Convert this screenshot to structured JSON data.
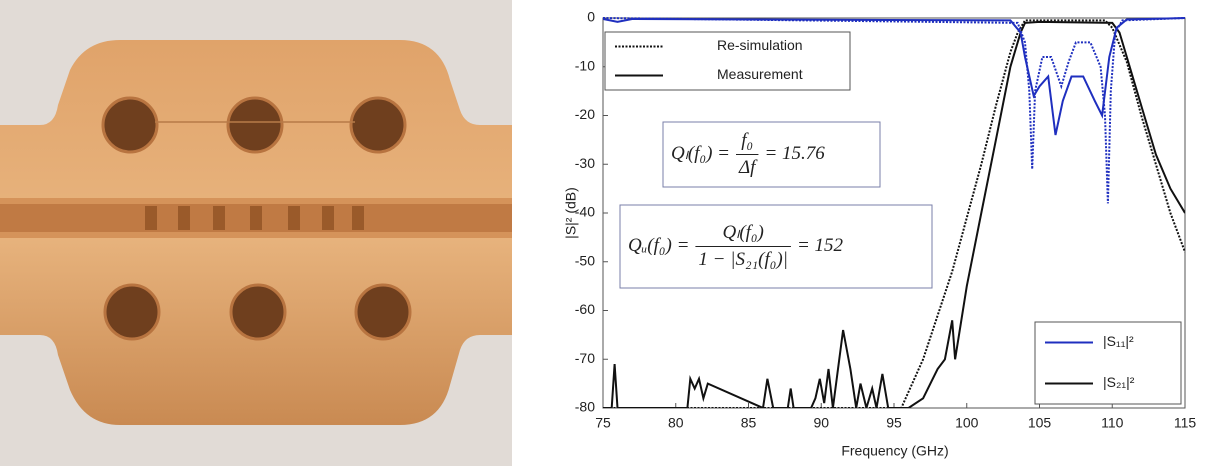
{
  "chart_data": {
    "type": "line",
    "xlabel": "Frequency (GHz)",
    "ylabel": "|S|² (dB)",
    "xlim": [
      75,
      115
    ],
    "ylim": [
      -80,
      0
    ],
    "xticks": [
      75,
      80,
      85,
      90,
      95,
      100,
      105,
      110,
      115
    ],
    "yticks": [
      0,
      -10,
      -20,
      -30,
      -40,
      -50,
      -60,
      -70,
      -80
    ],
    "series": [
      {
        "color": "#111111",
        "dash": "dotted",
        "x": [
          75,
          95.5,
          97,
          99,
          101,
          102,
          103,
          103.5,
          104,
          109.5,
          110,
          111,
          112,
          113,
          114,
          115
        ],
        "values": [
          -80,
          -80,
          -70,
          -52,
          -30,
          -18,
          -7,
          -3,
          -0.5,
          -0.5,
          -2,
          -9,
          -20,
          -30,
          -40,
          -48
        ]
      },
      {
        "color": "#111111",
        "dash": "solid",
        "x": [
          75,
          75.6,
          75.8,
          76,
          80.8,
          81,
          81.3,
          81.6,
          81.9,
          82.2,
          86,
          86.3,
          86.7,
          87.7,
          87.9,
          88.1,
          89.3,
          89.6,
          89.9,
          90.2,
          90.5,
          90.8,
          91.5,
          92,
          92.4,
          92.7,
          93.1,
          93.5,
          93.8,
          94.2,
          94.6,
          95,
          96,
          97,
          98,
          98.5,
          99,
          99.2,
          100,
          101,
          102,
          103,
          103.7,
          104,
          105,
          110,
          110.5,
          111,
          112,
          113,
          114,
          115
        ],
        "values": [
          -80,
          -80,
          -71,
          -80,
          -80,
          -74,
          -76,
          -74,
          -78,
          -75,
          -80,
          -74,
          -80,
          -80,
          -76,
          -80,
          -80,
          -78,
          -74,
          -79,
          -72,
          -80,
          -64,
          -72,
          -80,
          -75,
          -80,
          -76,
          -80,
          -73,
          -80,
          -80,
          -80,
          -78,
          -72,
          -70,
          -62,
          -70,
          -55,
          -40,
          -25,
          -10,
          -3,
          -1,
          -0.8,
          -1,
          -3,
          -8,
          -18,
          -28,
          -35,
          -40
        ]
      },
      {
        "color": "#1f2fbf",
        "dash": "dotted",
        "x": [
          75,
          103.5,
          104,
          104.3,
          104.5,
          104.7,
          105.2,
          105.8,
          106.5,
          107,
          107.5,
          108.5,
          109.2,
          109.5,
          109.7,
          109.9,
          110.2,
          110.7,
          115
        ],
        "values": [
          0,
          -1,
          -5,
          -15,
          -31,
          -15,
          -8,
          -8,
          -14,
          -9,
          -5,
          -5,
          -10,
          -20,
          -38,
          -15,
          -3,
          -0.5,
          0
        ]
      },
      {
        "color": "#1f2fbf",
        "dash": "solid",
        "x": [
          75,
          76,
          77,
          103,
          103.7,
          104,
          104.6,
          105,
          105.6,
          106.1,
          106.6,
          107.2,
          108,
          108.8,
          109.3,
          109.8,
          110.3,
          111,
          115
        ],
        "values": [
          -0.2,
          -0.8,
          -0.2,
          -0.5,
          -3,
          -8,
          -16,
          -14,
          -12,
          -24,
          -17,
          -12,
          -12,
          -17,
          -20,
          -8,
          -2,
          -0.3,
          0
        ]
      }
    ],
    "legends": [
      {
        "entries": [
          {
            "label": "Re-simulation",
            "dash": "dotted",
            "color": "#111111"
          },
          {
            "label": "Measurement",
            "dash": "solid",
            "color": "#111111"
          }
        ]
      },
      {
        "entries": [
          {
            "label": "|S₁₁|²",
            "dash": "solid",
            "color": "#1f2fbf"
          },
          {
            "label": "|S₂₁|²",
            "dash": "solid",
            "color": "#111111"
          }
        ]
      }
    ],
    "equations": [
      {
        "lhs": "Qₗ(f₀) =",
        "numerator": "f₀",
        "denominator": "Δf",
        "rhs": "= 15.76"
      },
      {
        "lhs": "Qᵤ(f₀) =",
        "numerator": "Qₗ(f₀)",
        "denominator": "1 − |S₂₁(f₀)|",
        "rhs": "= 152"
      }
    ]
  }
}
